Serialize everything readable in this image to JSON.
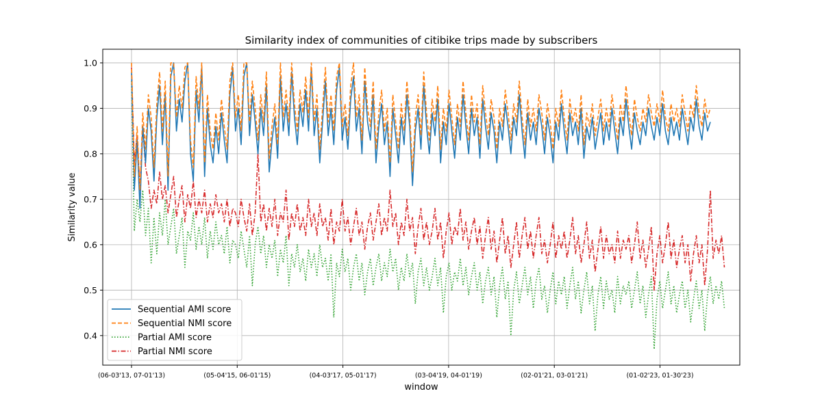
{
  "chart_data": {
    "type": "line",
    "title": "Similarity index of communities of citibike trips made by subscribers",
    "xlabel": "window",
    "ylabel": "Similarity value",
    "x_tick_labels": [
      "(06-03'13, 07-01'13)",
      "(05-04'15, 06-01'15)",
      "(04-03'17, 05-01'17)",
      "(03-04'19, 04-01'19)",
      "(02-01'21, 03-01'21)",
      "(01-02'23, 01-30'23)"
    ],
    "y_ticks": [
      0.4,
      0.5,
      0.6,
      0.7,
      0.8,
      0.9,
      1.0
    ],
    "y_tick_labels": [
      "0.4",
      "0.5",
      "0.6",
      "0.7",
      "0.8",
      "0.9",
      "1.0"
    ],
    "ylim": [
      0.335,
      1.03
    ],
    "grid": true,
    "legend_position": "lower-left",
    "series": [
      {
        "name": "Sequential AMI score",
        "color": "#1f77b4",
        "style": "solid",
        "values": [
          0.98,
          0.72,
          0.83,
          0.68,
          0.86,
          0.78,
          0.9,
          0.85,
          0.74,
          0.88,
          0.95,
          0.82,
          0.93,
          0.72,
          0.97,
          1.0,
          0.85,
          0.92,
          0.87,
          0.96,
          1.0,
          0.8,
          0.74,
          0.94,
          0.87,
          0.99,
          0.75,
          0.9,
          0.82,
          0.78,
          0.86,
          0.8,
          0.89,
          0.83,
          0.78,
          0.93,
          0.99,
          0.85,
          0.9,
          0.82,
          0.97,
          1.0,
          0.84,
          0.93,
          0.87,
          0.8,
          0.9,
          0.84,
          0.95,
          0.76,
          0.83,
          0.88,
          0.79,
          0.97,
          0.85,
          0.91,
          0.84,
          0.98,
          0.88,
          0.82,
          0.91,
          0.86,
          0.94,
          0.85,
          0.99,
          0.84,
          0.9,
          0.78,
          0.87,
          0.96,
          0.84,
          0.9,
          0.82,
          0.94,
          0.99,
          0.83,
          0.88,
          0.81,
          0.92,
          0.97,
          0.85,
          0.9,
          0.8,
          0.96,
          0.87,
          0.83,
          0.93,
          0.78,
          0.86,
          0.91,
          0.82,
          0.87,
          0.75,
          0.9,
          0.84,
          0.78,
          0.88,
          0.82,
          0.93,
          0.86,
          0.73,
          0.85,
          0.9,
          0.81,
          0.95,
          0.86,
          0.8,
          0.89,
          0.84,
          0.92,
          0.78,
          0.87,
          0.82,
          0.91,
          0.85,
          0.79,
          0.88,
          0.83,
          0.93,
          0.86,
          0.8,
          0.9,
          0.84,
          0.88,
          0.79,
          0.92,
          0.86,
          0.81,
          0.89,
          0.85,
          0.78,
          0.87,
          0.83,
          0.91,
          0.86,
          0.8,
          0.88,
          0.84,
          0.93,
          0.85,
          0.79,
          0.89,
          0.83,
          0.87,
          0.82,
          0.9,
          0.86,
          0.8,
          0.88,
          0.84,
          0.78,
          0.87,
          0.83,
          0.91,
          0.85,
          0.8,
          0.89,
          0.84,
          0.87,
          0.82,
          0.9,
          0.79,
          0.86,
          0.83,
          0.88,
          0.81,
          0.85,
          0.89,
          0.82,
          0.87,
          0.83,
          0.9,
          0.85,
          0.8,
          0.88,
          0.84,
          0.92,
          0.86,
          0.81,
          0.89,
          0.85,
          0.82,
          0.87,
          0.84,
          0.9,
          0.86,
          0.83,
          0.88,
          0.84,
          0.91,
          0.85,
          0.82,
          0.88,
          0.84,
          0.87,
          0.83,
          0.9,
          0.86,
          0.82,
          0.88,
          0.85,
          0.92,
          0.86,
          0.83,
          0.89,
          0.85,
          0.87
        ],
        "notes": ""
      },
      {
        "name": "Sequential NMI score",
        "color": "#ff7f0e",
        "style": "dashed",
        "values": [
          1.0,
          0.75,
          0.86,
          0.72,
          0.89,
          0.81,
          0.93,
          0.88,
          0.77,
          0.91,
          0.98,
          0.85,
          0.96,
          0.75,
          1.0,
          1.0,
          0.88,
          0.95,
          0.9,
          0.99,
          1.0,
          0.83,
          0.77,
          0.97,
          0.9,
          1.0,
          0.78,
          0.93,
          0.85,
          0.81,
          0.89,
          0.83,
          0.92,
          0.86,
          0.81,
          0.96,
          1.0,
          0.88,
          0.93,
          0.85,
          1.0,
          1.0,
          0.87,
          0.96,
          0.9,
          0.83,
          0.93,
          0.87,
          0.98,
          0.79,
          0.86,
          0.91,
          0.82,
          1.0,
          0.88,
          0.94,
          0.87,
          1.0,
          0.91,
          0.85,
          0.94,
          0.89,
          0.97,
          0.88,
          1.0,
          0.87,
          0.93,
          0.81,
          0.9,
          0.99,
          0.87,
          0.93,
          0.85,
          0.97,
          1.0,
          0.86,
          0.91,
          0.84,
          0.95,
          1.0,
          0.88,
          0.93,
          0.83,
          0.99,
          0.9,
          0.86,
          0.96,
          0.81,
          0.89,
          0.94,
          0.85,
          0.9,
          0.78,
          0.93,
          0.87,
          0.81,
          0.91,
          0.85,
          0.96,
          0.89,
          0.76,
          0.88,
          0.93,
          0.84,
          0.98,
          0.89,
          0.83,
          0.92,
          0.87,
          0.95,
          0.81,
          0.9,
          0.85,
          0.94,
          0.88,
          0.82,
          0.91,
          0.86,
          0.96,
          0.89,
          0.83,
          0.93,
          0.87,
          0.91,
          0.82,
          0.95,
          0.89,
          0.84,
          0.92,
          0.88,
          0.81,
          0.9,
          0.86,
          0.94,
          0.89,
          0.83,
          0.91,
          0.87,
          0.96,
          0.88,
          0.82,
          0.92,
          0.86,
          0.9,
          0.85,
          0.93,
          0.89,
          0.83,
          0.91,
          0.87,
          0.81,
          0.9,
          0.86,
          0.94,
          0.88,
          0.83,
          0.92,
          0.87,
          0.9,
          0.85,
          0.93,
          0.82,
          0.89,
          0.86,
          0.91,
          0.84,
          0.88,
          0.92,
          0.85,
          0.9,
          0.86,
          0.93,
          0.88,
          0.83,
          0.91,
          0.87,
          0.95,
          0.89,
          0.84,
          0.92,
          0.88,
          0.85,
          0.9,
          0.87,
          0.93,
          0.89,
          0.86,
          0.91,
          0.87,
          0.94,
          0.88,
          0.85,
          0.91,
          0.87,
          0.9,
          0.86,
          0.93,
          0.89,
          0.85,
          0.91,
          0.88,
          0.95,
          0.89,
          0.86,
          0.92,
          0.88,
          0.9
        ],
        "notes": ""
      },
      {
        "name": "Partial AMI score",
        "color": "#2ca02c",
        "style": "dotted",
        "values": [
          0.96,
          0.63,
          0.7,
          0.65,
          0.72,
          0.62,
          0.68,
          0.56,
          0.66,
          0.58,
          0.67,
          0.62,
          0.7,
          0.6,
          0.64,
          0.68,
          0.58,
          0.62,
          0.66,
          0.55,
          0.63,
          0.61,
          0.67,
          0.59,
          0.64,
          0.6,
          0.66,
          0.57,
          0.63,
          0.59,
          0.65,
          0.6,
          0.62,
          0.58,
          0.64,
          0.56,
          0.61,
          0.6,
          0.57,
          0.63,
          0.59,
          0.55,
          0.62,
          0.51,
          0.6,
          0.64,
          0.58,
          0.62,
          0.55,
          0.6,
          0.57,
          0.61,
          0.53,
          0.59,
          0.56,
          0.62,
          0.51,
          0.58,
          0.55,
          0.6,
          0.54,
          0.57,
          0.52,
          0.59,
          0.55,
          0.58,
          0.53,
          0.6,
          0.55,
          0.57,
          0.52,
          0.58,
          0.44,
          0.56,
          0.53,
          0.59,
          0.54,
          0.57,
          0.5,
          0.55,
          0.58,
          0.52,
          0.56,
          0.49,
          0.54,
          0.57,
          0.51,
          0.55,
          0.58,
          0.52,
          0.56,
          0.53,
          0.59,
          0.54,
          0.57,
          0.5,
          0.55,
          0.52,
          0.58,
          0.53,
          0.56,
          0.47,
          0.54,
          0.57,
          0.51,
          0.55,
          0.5,
          0.53,
          0.57,
          0.51,
          0.55,
          0.45,
          0.53,
          0.56,
          0.5,
          0.54,
          0.52,
          0.57,
          0.51,
          0.55,
          0.49,
          0.53,
          0.56,
          0.5,
          0.54,
          0.47,
          0.52,
          0.55,
          0.49,
          0.53,
          0.44,
          0.51,
          0.55,
          0.48,
          0.52,
          0.4,
          0.5,
          0.54,
          0.47,
          0.51,
          0.55,
          0.49,
          0.53,
          0.46,
          0.52,
          0.55,
          0.48,
          0.51,
          0.45,
          0.5,
          0.54,
          0.47,
          0.52,
          0.49,
          0.53,
          0.46,
          0.51,
          0.55,
          0.48,
          0.52,
          0.45,
          0.5,
          0.54,
          0.47,
          0.51,
          0.41,
          0.49,
          0.53,
          0.46,
          0.52,
          0.48,
          0.5,
          0.45,
          0.53,
          0.47,
          0.51,
          0.49,
          0.52,
          0.46,
          0.5,
          0.54,
          0.47,
          0.51,
          0.44,
          0.49,
          0.53,
          0.37,
          0.48,
          0.52,
          0.46,
          0.5,
          0.54,
          0.47,
          0.51,
          0.45,
          0.49,
          0.52,
          0.46,
          0.5,
          0.43,
          0.48,
          0.52,
          0.46,
          0.5,
          0.41,
          0.49,
          0.53,
          0.47,
          0.51,
          0.48,
          0.52,
          0.46
        ],
        "notes": ""
      },
      {
        "name": "Partial NMI score",
        "color": "#d62728",
        "style": "dashdot",
        "values": [
          0.99,
          0.78,
          0.84,
          0.72,
          0.86,
          0.77,
          0.74,
          0.68,
          0.72,
          0.69,
          0.76,
          0.7,
          0.73,
          0.67,
          0.71,
          0.75,
          0.66,
          0.7,
          0.73,
          0.65,
          0.71,
          0.68,
          0.74,
          0.66,
          0.7,
          0.67,
          0.72,
          0.65,
          0.69,
          0.66,
          0.71,
          0.67,
          0.69,
          0.65,
          0.7,
          0.64,
          0.68,
          0.67,
          0.64,
          0.7,
          0.66,
          0.63,
          0.69,
          0.62,
          0.67,
          0.8,
          0.65,
          0.69,
          0.63,
          0.68,
          0.64,
          0.7,
          0.62,
          0.67,
          0.65,
          0.72,
          0.61,
          0.67,
          0.64,
          0.69,
          0.63,
          0.66,
          0.62,
          0.7,
          0.64,
          0.67,
          0.62,
          0.69,
          0.64,
          0.66,
          0.61,
          0.68,
          0.6,
          0.65,
          0.63,
          0.7,
          0.63,
          0.66,
          0.6,
          0.64,
          0.68,
          0.62,
          0.65,
          0.59,
          0.64,
          0.67,
          0.61,
          0.65,
          0.69,
          0.62,
          0.66,
          0.63,
          0.72,
          0.64,
          0.67,
          0.6,
          0.65,
          0.62,
          0.7,
          0.63,
          0.66,
          0.58,
          0.64,
          0.68,
          0.61,
          0.65,
          0.6,
          0.63,
          0.68,
          0.61,
          0.65,
          0.57,
          0.63,
          0.67,
          0.6,
          0.64,
          0.62,
          0.68,
          0.61,
          0.65,
          0.59,
          0.63,
          0.66,
          0.6,
          0.64,
          0.57,
          0.62,
          0.66,
          0.59,
          0.63,
          0.56,
          0.61,
          0.66,
          0.58,
          0.62,
          0.55,
          0.6,
          0.65,
          0.57,
          0.62,
          0.66,
          0.59,
          0.63,
          0.57,
          0.62,
          0.66,
          0.58,
          0.61,
          0.56,
          0.6,
          0.65,
          0.57,
          0.62,
          0.59,
          0.63,
          0.57,
          0.61,
          0.66,
          0.58,
          0.62,
          0.56,
          0.6,
          0.65,
          0.57,
          0.61,
          0.54,
          0.59,
          0.64,
          0.57,
          0.62,
          0.58,
          0.6,
          0.56,
          0.63,
          0.57,
          0.61,
          0.59,
          0.62,
          0.56,
          0.6,
          0.65,
          0.57,
          0.61,
          0.55,
          0.59,
          0.64,
          0.5,
          0.58,
          0.62,
          0.56,
          0.6,
          0.65,
          0.57,
          0.61,
          0.55,
          0.59,
          0.62,
          0.56,
          0.6,
          0.52,
          0.58,
          0.62,
          0.56,
          0.6,
          0.51,
          0.59,
          0.72,
          0.57,
          0.61,
          0.58,
          0.62,
          0.55
        ],
        "notes": ""
      }
    ]
  }
}
